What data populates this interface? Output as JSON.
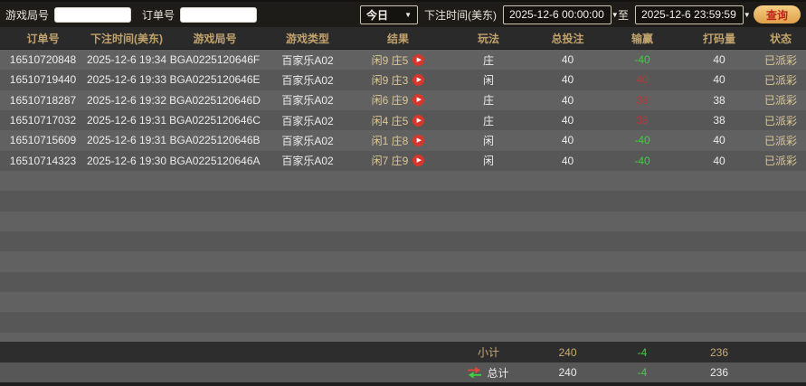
{
  "topbar": {
    "game_round_label": "游戏局号",
    "game_round_value": "",
    "order_no_label": "订单号",
    "order_no_value": "",
    "range_preset": "今日",
    "bet_time_label": "下注时间(美东)",
    "start_time": "2025-12-6 00:00:00",
    "to_label": "至",
    "end_time": "2025-12-6 23:59:59",
    "query_label": "查询"
  },
  "table": {
    "columns": [
      {
        "key": "order_no",
        "label": "订单号"
      },
      {
        "key": "bet_time",
        "label": "下注时间(美东)"
      },
      {
        "key": "game_round",
        "label": "游戏局号"
      },
      {
        "key": "game_type",
        "label": "游戏类型"
      },
      {
        "key": "result",
        "label": "结果"
      },
      {
        "key": "play_type",
        "label": "玩法"
      },
      {
        "key": "total_bet",
        "label": "总投注"
      },
      {
        "key": "win_loss",
        "label": "输赢"
      },
      {
        "key": "turnover",
        "label": "打码量"
      },
      {
        "key": "status",
        "label": "状态"
      }
    ],
    "rows": [
      {
        "order_no": "16510720848",
        "bet_time": "2025-12-6 19:34",
        "game_round": "BGA0225120646F",
        "game_type": "百家乐A02",
        "result": "闲9 庄5",
        "play_type": "庄",
        "total_bet": "40",
        "win_loss": "-40",
        "turnover": "40",
        "status": "已派彩"
      },
      {
        "order_no": "16510719440",
        "bet_time": "2025-12-6 19:33",
        "game_round": "BGA0225120646E",
        "game_type": "百家乐A02",
        "result": "闲9 庄3",
        "play_type": "闲",
        "total_bet": "40",
        "win_loss": "40",
        "turnover": "40",
        "status": "已派彩"
      },
      {
        "order_no": "16510718287",
        "bet_time": "2025-12-6 19:32",
        "game_round": "BGA0225120646D",
        "game_type": "百家乐A02",
        "result": "闲6 庄9",
        "play_type": "庄",
        "total_bet": "40",
        "win_loss": "38",
        "turnover": "38",
        "status": "已派彩"
      },
      {
        "order_no": "16510717032",
        "bet_time": "2025-12-6 19:31",
        "game_round": "BGA0225120646C",
        "game_type": "百家乐A02",
        "result": "闲4 庄5",
        "play_type": "庄",
        "total_bet": "40",
        "win_loss": "38",
        "turnover": "38",
        "status": "已派彩"
      },
      {
        "order_no": "16510715609",
        "bet_time": "2025-12-6 19:31",
        "game_round": "BGA0225120646B",
        "game_type": "百家乐A02",
        "result": "闲1 庄8",
        "play_type": "闲",
        "total_bet": "40",
        "win_loss": "-40",
        "turnover": "40",
        "status": "已派彩"
      },
      {
        "order_no": "16510714323",
        "bet_time": "2025-12-6 19:30",
        "game_round": "BGA0225120646A",
        "game_type": "百家乐A02",
        "result": "闲7 庄9",
        "play_type": "闲",
        "total_bet": "40",
        "win_loss": "-40",
        "turnover": "40",
        "status": "已派彩"
      }
    ]
  },
  "footer": {
    "subtotal_label": "小计",
    "subtotal": {
      "total_bet": "240",
      "win_loss": "-4",
      "turnover": "236"
    },
    "total_label": "总计",
    "total": {
      "total_bet": "240",
      "win_loss": "-4",
      "turnover": "236"
    }
  },
  "colors": {
    "win_red": "#b63838",
    "loss_green": "#3fd03f",
    "header_gold": "#c2a36d",
    "result_tan": "#dcc795",
    "query_button_gold": "#e8b45f",
    "query_button_text": "#bf2418",
    "play_icon_red": "#d6372c"
  }
}
